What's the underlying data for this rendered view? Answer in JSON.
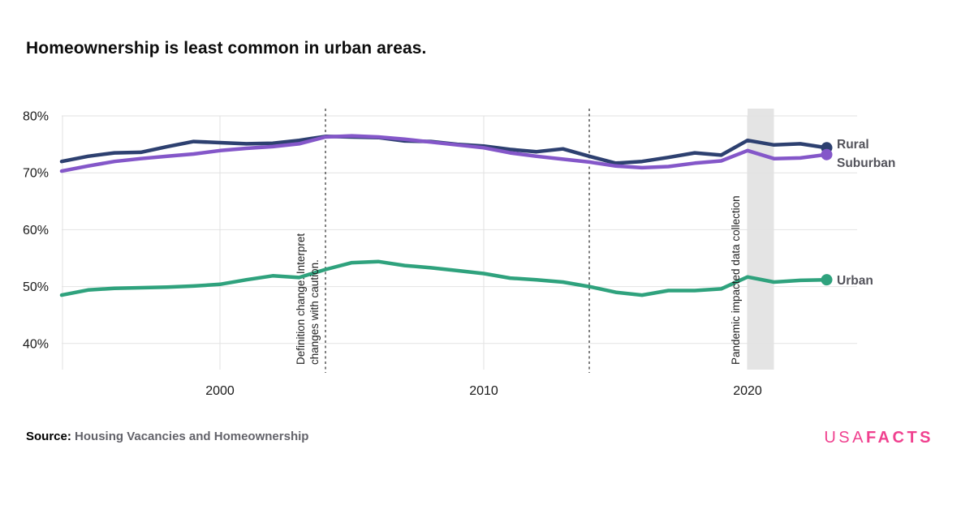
{
  "title": "Homeownership is least common in urban areas.",
  "source": {
    "label": "Source:",
    "text": "Housing Vacancies and Homeownership"
  },
  "logo": {
    "usa": "USA",
    "facts": "FACTS",
    "color": "#f0418f"
  },
  "annotations": {
    "definition_line1": "Definition change. Interpret",
    "definition_line2": "changes with caution.",
    "pandemic": "Pandemic impacted data collection"
  },
  "chart_data": {
    "type": "line",
    "title": "Homeownership is least common in urban areas.",
    "x": [
      1994,
      1995,
      1996,
      1997,
      1998,
      1999,
      2000,
      2001,
      2002,
      2003,
      2004,
      2005,
      2006,
      2007,
      2008,
      2009,
      2010,
      2011,
      2012,
      2013,
      2014,
      2015,
      2016,
      2017,
      2018,
      2019,
      2020,
      2021,
      2022,
      2023
    ],
    "series": [
      {
        "name": "Rural",
        "color": "#2d4070",
        "values": [
          72.0,
          72.9,
          73.5,
          73.6,
          74.6,
          75.5,
          75.3,
          75.1,
          75.2,
          75.7,
          76.4,
          76.3,
          76.2,
          75.6,
          75.5,
          75.0,
          74.7,
          74.1,
          73.7,
          74.2,
          72.9,
          71.7,
          72.0,
          72.7,
          73.5,
          73.1,
          75.7,
          74.9,
          75.1,
          74.4
        ]
      },
      {
        "name": "Suburban",
        "color": "#8457c9",
        "values": [
          70.3,
          71.2,
          72.0,
          72.5,
          72.9,
          73.3,
          73.9,
          74.3,
          74.6,
          75.1,
          76.3,
          76.5,
          76.3,
          75.9,
          75.4,
          74.9,
          74.4,
          73.5,
          72.9,
          72.4,
          71.9,
          71.2,
          70.9,
          71.1,
          71.7,
          72.1,
          73.9,
          72.5,
          72.6,
          73.2
        ]
      },
      {
        "name": "Urban",
        "color": "#2fa27d",
        "values": [
          48.5,
          49.4,
          49.7,
          49.8,
          49.9,
          50.1,
          50.4,
          51.2,
          51.9,
          51.6,
          53.0,
          54.2,
          54.4,
          53.7,
          53.3,
          52.8,
          52.3,
          51.5,
          51.2,
          50.8,
          50.0,
          49.0,
          48.5,
          49.3,
          49.3,
          49.6,
          51.7,
          50.8,
          51.1,
          51.2
        ]
      }
    ],
    "ylabel_ticks": [
      "80%",
      "70%",
      "60%",
      "50%",
      "40%"
    ],
    "ytick_values": [
      80,
      70,
      60,
      50,
      40
    ],
    "xtick_labels": [
      "2000",
      "2010",
      "2020"
    ],
    "xtick_values": [
      2000,
      2010,
      2020
    ],
    "xlim": [
      1994,
      2024.2
    ],
    "ylim": [
      35.5,
      81.4
    ],
    "grid": true,
    "legend_position": "right-of-line-ends",
    "dashed_vlines": [
      2004,
      2014
    ],
    "shaded_band": {
      "from": 2020,
      "to": 2021,
      "color": "#e4e4e4"
    },
    "grid_color": "#e2e2e2",
    "dashed_line_color": "#2b2b2b"
  }
}
